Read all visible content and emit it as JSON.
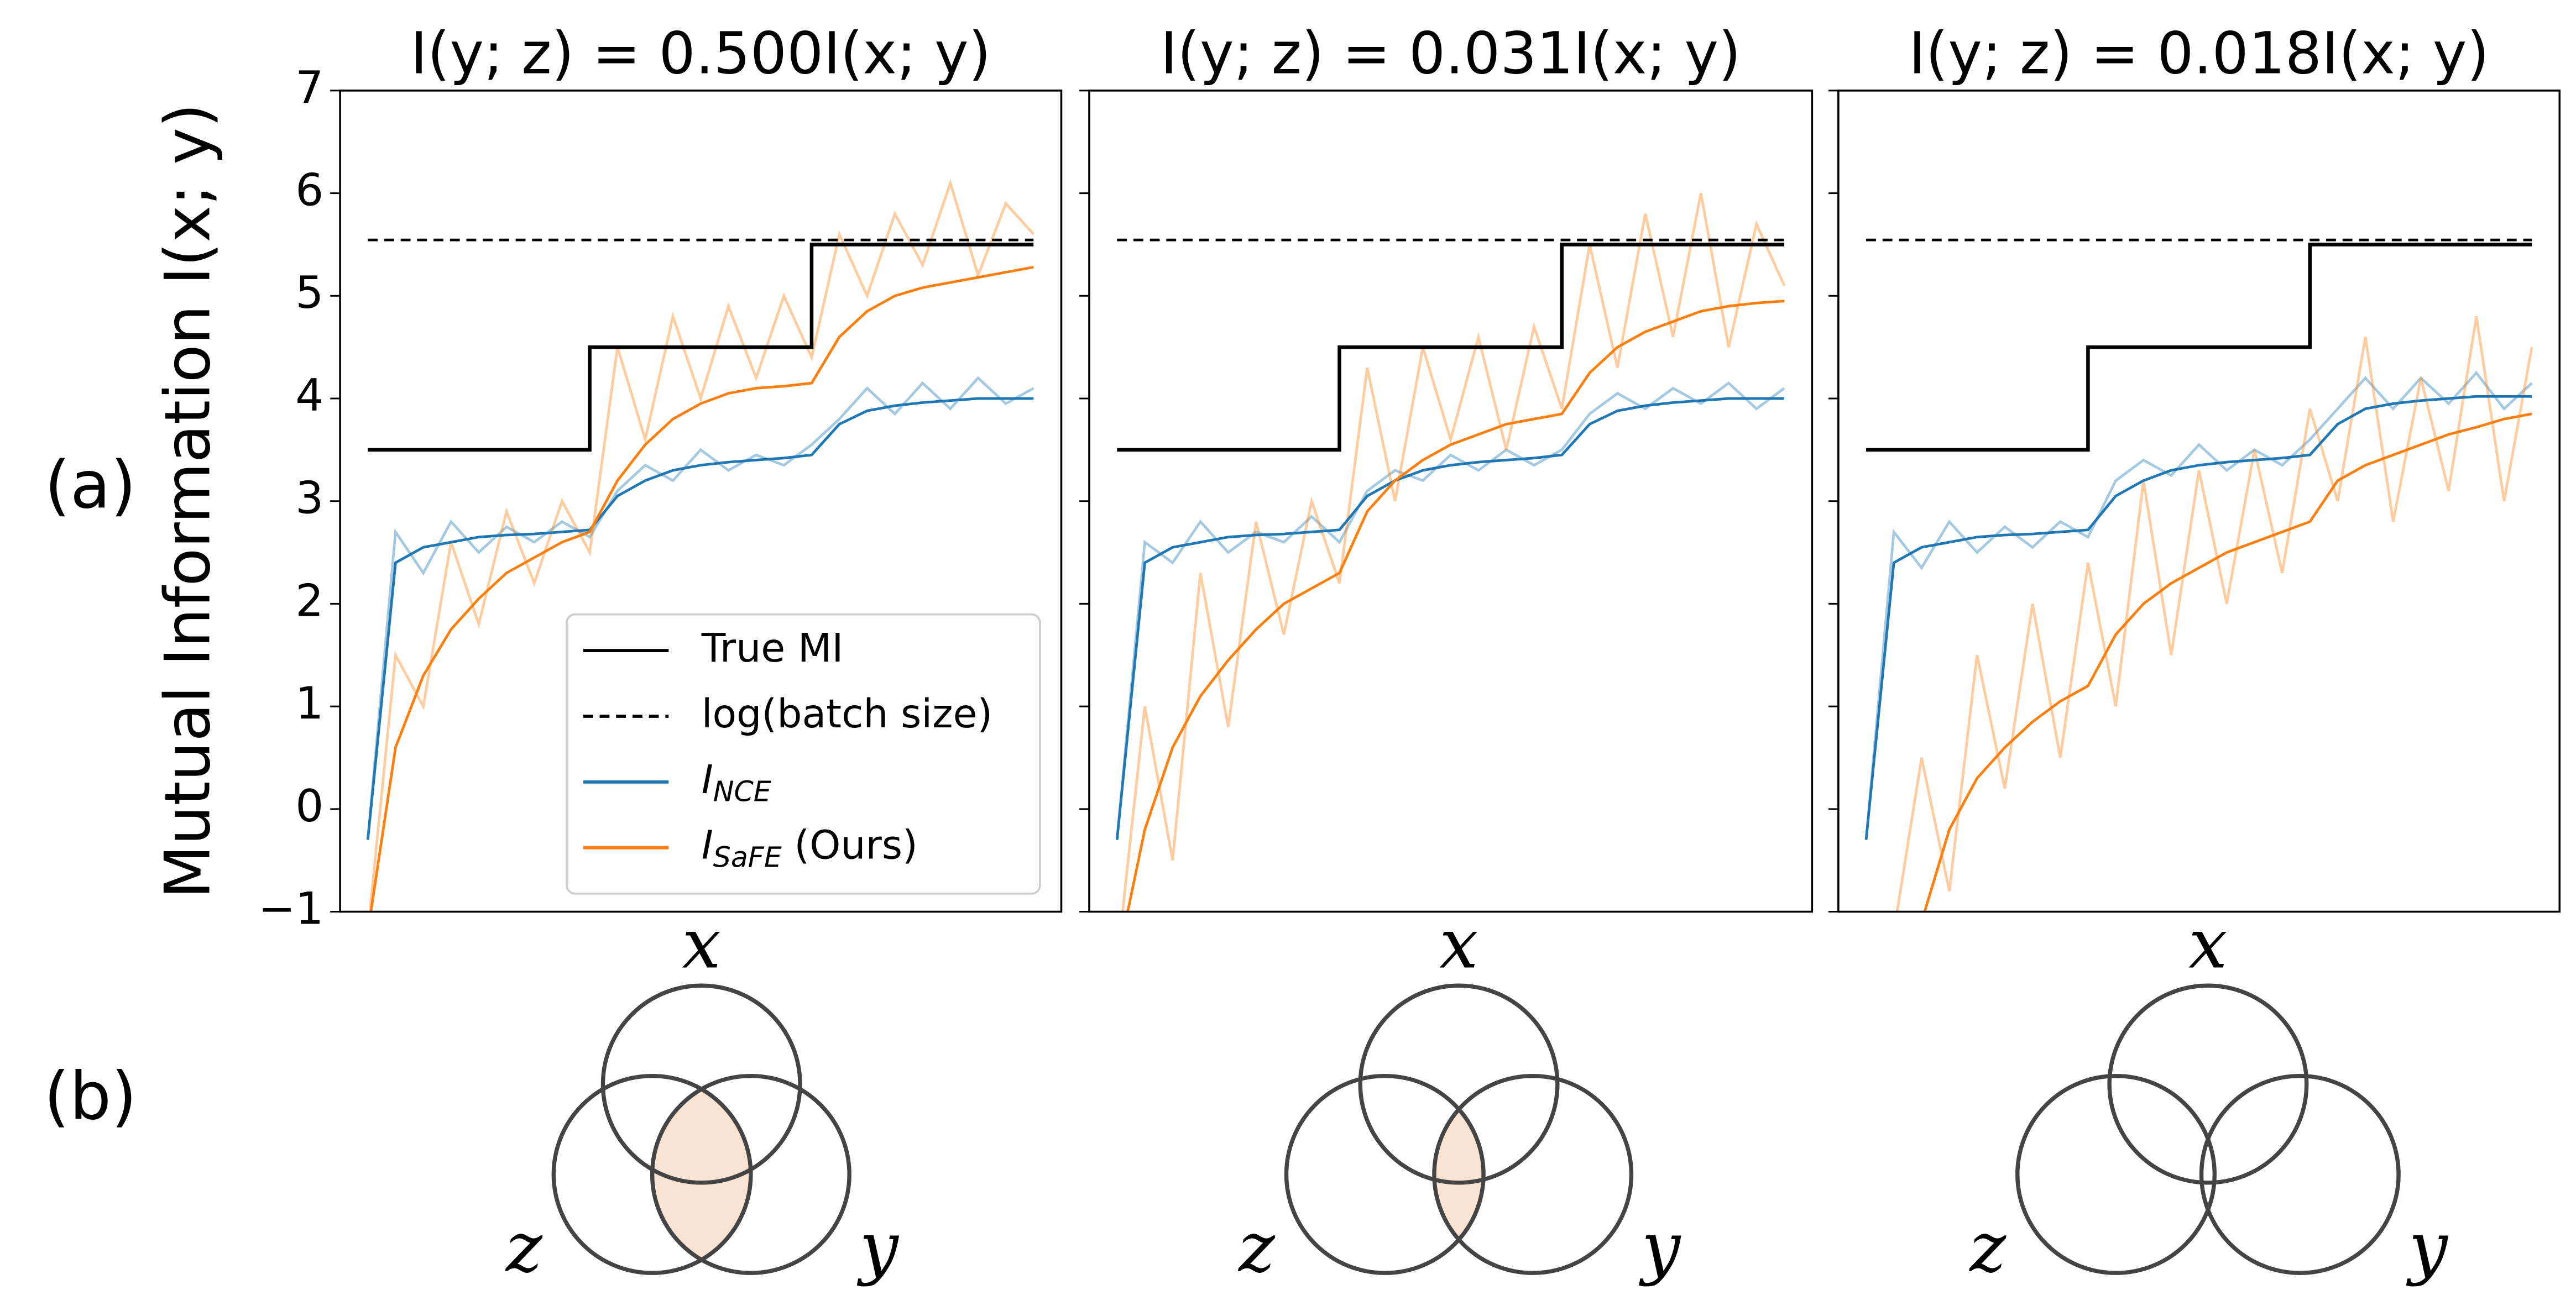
{
  "panel_labels": [
    "(a)",
    "(b)"
  ],
  "chart_data": [
    {
      "type": "line",
      "title": "I(y; z) = 0.500I(x; y)",
      "ylabel": "Mutual Information I(x; y)",
      "legend": "lower right",
      "xlim": [
        -1,
        25
      ],
      "ylim": [
        -1,
        7
      ],
      "yticks": [
        {
          "value": -1,
          "label": "−1"
        },
        0,
        1,
        2,
        3,
        4,
        5,
        6,
        7
      ],
      "x": [
        0,
        1,
        2,
        3,
        4,
        5,
        6,
        7,
        8,
        9,
        10,
        11,
        12,
        13,
        14,
        15,
        16,
        17,
        18,
        19,
        20,
        21,
        22,
        23,
        24
      ],
      "series": [
        {
          "name": "True MI",
          "color": "#000000",
          "drawstyle": "steps-post",
          "values": [
            3.5,
            3.5,
            3.5,
            3.5,
            3.5,
            3.5,
            3.5,
            3.5,
            4.5,
            4.5,
            4.5,
            4.5,
            4.5,
            4.5,
            4.5,
            4.5,
            5.5,
            5.5,
            5.5,
            5.5,
            5.5,
            5.5,
            5.5,
            5.5,
            5.5
          ]
        },
        {
          "name": "log(batch size)",
          "color": "#000000",
          "linestyle": "dashed",
          "values": [
            5.545,
            5.545,
            5.545,
            5.545,
            5.545,
            5.545,
            5.545,
            5.545,
            5.545,
            5.545,
            5.545,
            5.545,
            5.545,
            5.545,
            5.545,
            5.545,
            5.545,
            5.545,
            5.545,
            5.545,
            5.545,
            5.545,
            5.545,
            5.545,
            5.545
          ]
        },
        {
          "name": "I",
          "name_sub": "NCE",
          "color": "#1f77b4",
          "values": [
            -0.3,
            2.4,
            2.55,
            2.6,
            2.65,
            2.67,
            2.68,
            2.7,
            2.72,
            3.05,
            3.2,
            3.3,
            3.35,
            3.38,
            3.4,
            3.42,
            3.45,
            3.75,
            3.88,
            3.93,
            3.96,
            3.98,
            4.0,
            4.0,
            4.0
          ]
        },
        {
          "name": "I",
          "name_sub": "SaFE",
          "name_suffix": " (Ours)",
          "color": "#ff7f0e",
          "values": [
            -1.2,
            0.6,
            1.3,
            1.75,
            2.05,
            2.3,
            2.45,
            2.6,
            2.7,
            3.2,
            3.55,
            3.8,
            3.95,
            4.05,
            4.1,
            4.12,
            4.15,
            4.6,
            4.85,
            5.0,
            5.08,
            5.13,
            5.18,
            5.23,
            5.28
          ]
        },
        {
          "color": "#1f77b4",
          "opacity": 0.4,
          "values": [
            -0.3,
            2.7,
            2.3,
            2.8,
            2.5,
            2.75,
            2.6,
            2.8,
            2.65,
            3.1,
            3.35,
            3.2,
            3.5,
            3.3,
            3.45,
            3.35,
            3.55,
            3.8,
            4.1,
            3.85,
            4.15,
            3.9,
            4.2,
            3.95,
            4.1
          ]
        },
        {
          "color": "#ff7f0e",
          "opacity": 0.4,
          "values": [
            -1.2,
            1.5,
            1.0,
            2.6,
            1.8,
            2.9,
            2.2,
            3.0,
            2.5,
            4.5,
            3.6,
            4.8,
            4.0,
            4.9,
            4.2,
            5.0,
            4.4,
            5.6,
            5.0,
            5.8,
            5.3,
            6.1,
            5.2,
            5.9,
            5.6
          ]
        }
      ]
    },
    {
      "type": "line",
      "title": "I(y; z) = 0.031I(x; y)",
      "xlim": [
        -1,
        25
      ],
      "ylim": [
        -1,
        7
      ],
      "yticks": [
        -1,
        0,
        1,
        2,
        3,
        4,
        5,
        6,
        7
      ],
      "x": [
        0,
        1,
        2,
        3,
        4,
        5,
        6,
        7,
        8,
        9,
        10,
        11,
        12,
        13,
        14,
        15,
        16,
        17,
        18,
        19,
        20,
        21,
        22,
        23,
        24
      ],
      "series": [
        {
          "name": "True MI",
          "color": "#000000",
          "drawstyle": "steps-post",
          "values": [
            3.5,
            3.5,
            3.5,
            3.5,
            3.5,
            3.5,
            3.5,
            3.5,
            4.5,
            4.5,
            4.5,
            4.5,
            4.5,
            4.5,
            4.5,
            4.5,
            5.5,
            5.5,
            5.5,
            5.5,
            5.5,
            5.5,
            5.5,
            5.5,
            5.5
          ]
        },
        {
          "name": "log(batch size)",
          "color": "#000000",
          "linestyle": "dashed",
          "values": [
            5.545,
            5.545,
            5.545,
            5.545,
            5.545,
            5.545,
            5.545,
            5.545,
            5.545,
            5.545,
            5.545,
            5.545,
            5.545,
            5.545,
            5.545,
            5.545,
            5.545,
            5.545,
            5.545,
            5.545,
            5.545,
            5.545,
            5.545,
            5.545,
            5.545
          ]
        },
        {
          "name": "I",
          "name_sub": "NCE",
          "color": "#1f77b4",
          "values": [
            -0.3,
            2.4,
            2.55,
            2.6,
            2.65,
            2.67,
            2.68,
            2.7,
            2.72,
            3.05,
            3.2,
            3.3,
            3.35,
            3.38,
            3.4,
            3.42,
            3.45,
            3.75,
            3.88,
            3.93,
            3.96,
            3.98,
            4.0,
            4.0,
            4.0
          ]
        },
        {
          "name": "I",
          "name_sub": "SaFE",
          "name_suffix": " (Ours)",
          "color": "#ff7f0e",
          "values": [
            -1.5,
            -0.2,
            0.6,
            1.1,
            1.45,
            1.75,
            2.0,
            2.15,
            2.3,
            2.9,
            3.2,
            3.4,
            3.55,
            3.65,
            3.75,
            3.8,
            3.85,
            4.25,
            4.5,
            4.65,
            4.75,
            4.85,
            4.9,
            4.93,
            4.95
          ]
        },
        {
          "color": "#1f77b4",
          "opacity": 0.4,
          "values": [
            -0.3,
            2.6,
            2.4,
            2.8,
            2.5,
            2.7,
            2.6,
            2.85,
            2.6,
            3.1,
            3.3,
            3.2,
            3.45,
            3.3,
            3.5,
            3.35,
            3.5,
            3.85,
            4.05,
            3.9,
            4.1,
            3.95,
            4.15,
            3.9,
            4.1
          ]
        },
        {
          "color": "#ff7f0e",
          "opacity": 0.4,
          "values": [
            -1.5,
            1.0,
            -0.5,
            2.3,
            0.8,
            2.8,
            1.7,
            3.0,
            2.2,
            4.3,
            3.0,
            4.5,
            3.6,
            4.6,
            3.5,
            4.7,
            3.9,
            5.5,
            4.3,
            5.8,
            4.6,
            6.0,
            4.5,
            5.7,
            5.1
          ]
        }
      ]
    },
    {
      "type": "line",
      "title": "I(y; z) = 0.018I(x; y)",
      "xlim": [
        -1,
        25
      ],
      "ylim": [
        -1,
        7
      ],
      "yticks": [
        -1,
        0,
        1,
        2,
        3,
        4,
        5,
        6,
        7
      ],
      "x": [
        0,
        1,
        2,
        3,
        4,
        5,
        6,
        7,
        8,
        9,
        10,
        11,
        12,
        13,
        14,
        15,
        16,
        17,
        18,
        19,
        20,
        21,
        22,
        23,
        24
      ],
      "series": [
        {
          "name": "True MI",
          "color": "#000000",
          "drawstyle": "steps-post",
          "values": [
            3.5,
            3.5,
            3.5,
            3.5,
            3.5,
            3.5,
            3.5,
            3.5,
            4.5,
            4.5,
            4.5,
            4.5,
            4.5,
            4.5,
            4.5,
            4.5,
            5.5,
            5.5,
            5.5,
            5.5,
            5.5,
            5.5,
            5.5,
            5.5,
            5.5
          ]
        },
        {
          "name": "log(batch size)",
          "color": "#000000",
          "linestyle": "dashed",
          "values": [
            5.545,
            5.545,
            5.545,
            5.545,
            5.545,
            5.545,
            5.545,
            5.545,
            5.545,
            5.545,
            5.545,
            5.545,
            5.545,
            5.545,
            5.545,
            5.545,
            5.545,
            5.545,
            5.545,
            5.545,
            5.545,
            5.545,
            5.545,
            5.545,
            5.545
          ]
        },
        {
          "name": "I",
          "name_sub": "NCE",
          "color": "#1f77b4",
          "values": [
            -0.3,
            2.4,
            2.55,
            2.6,
            2.65,
            2.67,
            2.68,
            2.7,
            2.72,
            3.05,
            3.2,
            3.3,
            3.35,
            3.38,
            3.4,
            3.42,
            3.45,
            3.75,
            3.9,
            3.95,
            3.98,
            4.0,
            4.02,
            4.02,
            4.02
          ]
        },
        {
          "name": "I",
          "name_sub": "SaFE",
          "name_suffix": " (Ours)",
          "color": "#ff7f0e",
          "values": [
            -1.6,
            -1.3,
            -1.1,
            -0.2,
            0.3,
            0.6,
            0.85,
            1.05,
            1.2,
            1.7,
            2.0,
            2.2,
            2.35,
            2.5,
            2.6,
            2.7,
            2.8,
            3.2,
            3.35,
            3.45,
            3.55,
            3.65,
            3.72,
            3.8,
            3.85
          ]
        },
        {
          "color": "#1f77b4",
          "opacity": 0.4,
          "values": [
            -0.3,
            2.7,
            2.35,
            2.8,
            2.5,
            2.75,
            2.55,
            2.8,
            2.65,
            3.2,
            3.4,
            3.25,
            3.55,
            3.3,
            3.5,
            3.35,
            3.6,
            3.9,
            4.2,
            3.9,
            4.2,
            3.95,
            4.25,
            3.9,
            4.15
          ]
        },
        {
          "color": "#ff7f0e",
          "opacity": 0.4,
          "values": [
            -1.5,
            -1.2,
            0.5,
            -0.8,
            1.5,
            0.2,
            2.0,
            0.5,
            2.4,
            1.0,
            3.2,
            1.5,
            3.3,
            2.0,
            3.5,
            2.3,
            3.9,
            3.0,
            4.6,
            2.8,
            4.2,
            3.1,
            4.8,
            3.0,
            4.5
          ]
        }
      ]
    }
  ],
  "venn": [
    {
      "top": "x",
      "left": "z",
      "right": "y",
      "shaded": true
    },
    {
      "top": "x",
      "left": "z",
      "right": "y",
      "shaded": true
    },
    {
      "top": "x",
      "left": "z",
      "right": "y",
      "shaded": false
    }
  ]
}
